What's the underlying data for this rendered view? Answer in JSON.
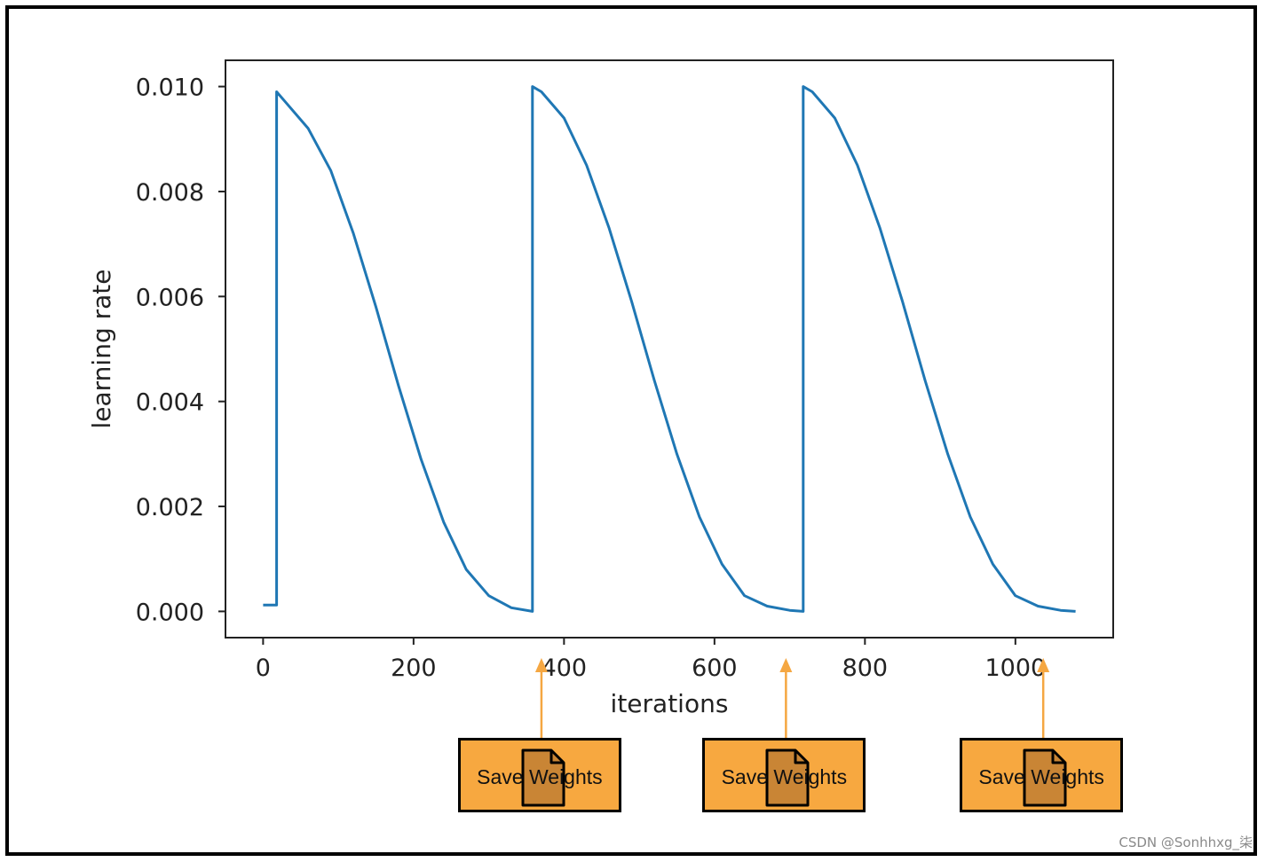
{
  "chart_data": {
    "type": "line",
    "xlabel": "iterations",
    "ylabel": "learning rate",
    "xlim": [
      -50,
      1130
    ],
    "ylim": [
      -0.0005,
      0.0105
    ],
    "xticks": [
      0,
      200,
      400,
      600,
      800,
      1000
    ],
    "xtick_labels": [
      "0",
      "200",
      "400",
      "600",
      "800",
      "1000"
    ],
    "yticks": [
      0.0,
      0.002,
      0.004,
      0.006,
      0.008,
      0.01
    ],
    "ytick_labels": [
      "0.000",
      "0.002",
      "0.004",
      "0.006",
      "0.008",
      "0.010"
    ],
    "grid": false,
    "series": [
      {
        "color": "#1f77b4",
        "x": [
          0,
          18,
          18,
          30,
          60,
          90,
          120,
          150,
          180,
          210,
          240,
          270,
          300,
          330,
          358,
          358,
          370,
          400,
          430,
          460,
          490,
          520,
          550,
          580,
          610,
          640,
          670,
          700,
          718,
          718,
          730,
          760,
          790,
          820,
          850,
          880,
          910,
          940,
          970,
          1000,
          1030,
          1060,
          1080
        ],
        "y": [
          0.00012,
          0.00012,
          0.0099,
          0.0097,
          0.0092,
          0.0084,
          0.0072,
          0.0058,
          0.0043,
          0.0029,
          0.0017,
          0.0008,
          0.0003,
          7e-05,
          0.0,
          0.01,
          0.0099,
          0.0094,
          0.0085,
          0.0073,
          0.0059,
          0.0044,
          0.003,
          0.0018,
          0.0009,
          0.0003,
          0.0001,
          2e-05,
          0.0,
          0.01,
          0.0099,
          0.0094,
          0.0085,
          0.0073,
          0.0059,
          0.0044,
          0.003,
          0.0018,
          0.0009,
          0.0003,
          0.0001,
          2e-05,
          0.0
        ]
      }
    ],
    "annotations": [
      {
        "label": "Save Weights",
        "x": 370
      },
      {
        "label": "Save Weights",
        "x": 695
      },
      {
        "label": "Save Weights",
        "x": 1037
      }
    ]
  },
  "annotation_style": {
    "box_color": "#f7a840",
    "arrow_color": "#f5a742",
    "icon": "document-icon",
    "icon_color": "#c98535"
  },
  "watermark": "CSDN @Sonhhxg_柒"
}
